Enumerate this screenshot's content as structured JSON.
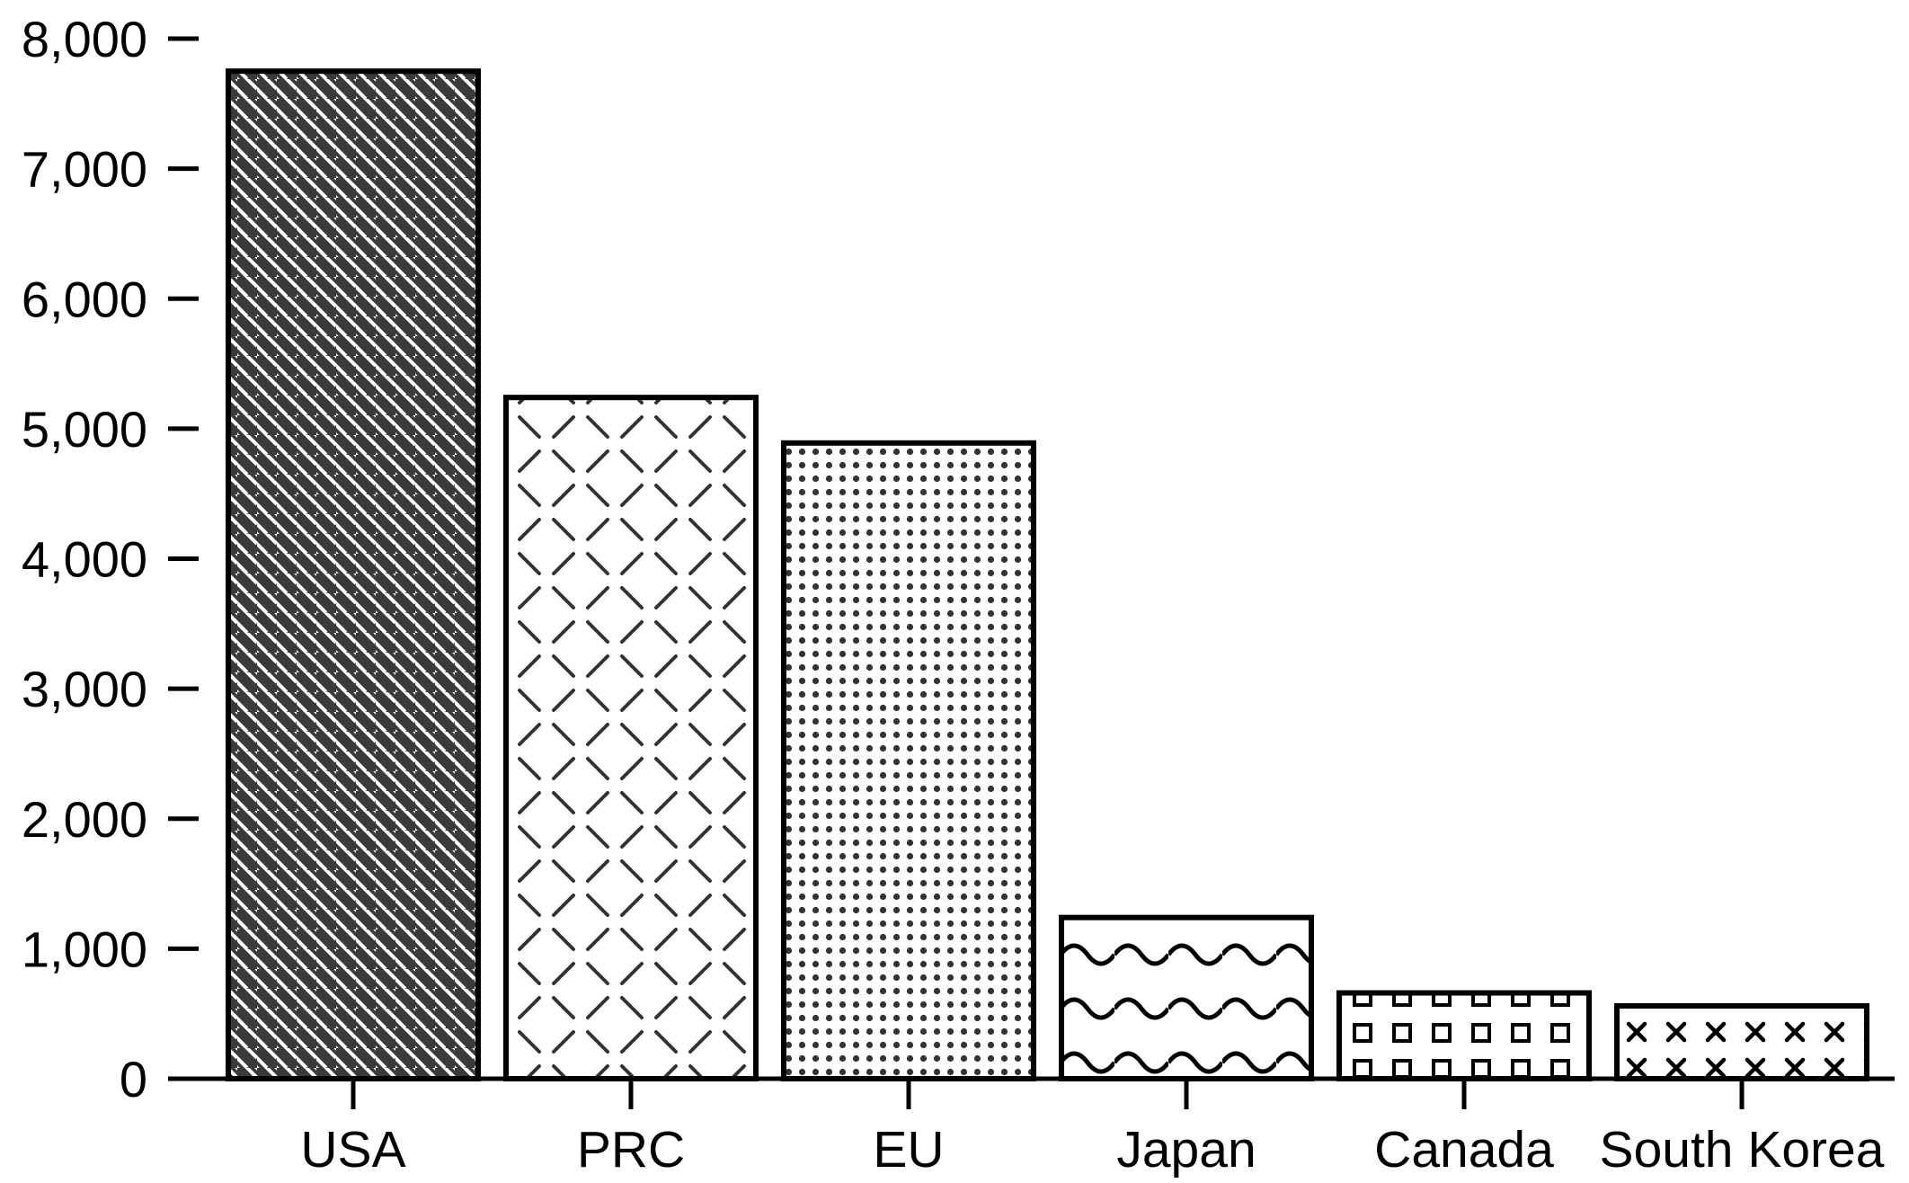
{
  "chart_data": {
    "type": "bar",
    "title": "",
    "xlabel": "",
    "ylabel": "",
    "categories": [
      "USA",
      "PRC",
      "EU",
      "Japan",
      "Canada",
      "South Korea"
    ],
    "values": [
      7750,
      5240,
      4890,
      1240,
      660,
      560
    ],
    "ylim": [
      0,
      8000
    ],
    "yticks": [
      0,
      1000,
      2000,
      3000,
      4000,
      5000,
      6000,
      7000,
      8000
    ],
    "ytick_labels": [
      "0",
      "1,000",
      "2,000",
      "3,000",
      "4,000",
      "5,000",
      "6,000",
      "7,000",
      "8,000"
    ],
    "grid": false,
    "legend": "none",
    "bar_patterns": [
      "diagonal-stripes-dark",
      "dashed-crosshatch",
      "dots",
      "waves",
      "squares",
      "crosses"
    ],
    "colors": {
      "ink": "#000000",
      "dark_fill": "#3a3a3a",
      "background": "#ffffff"
    }
  }
}
